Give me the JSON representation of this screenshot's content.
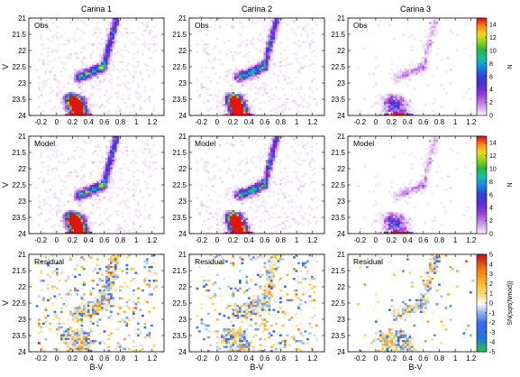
{
  "chart_data": {
    "type": "heatmap",
    "columns": [
      "Carina 1",
      "Carina 2",
      "Carina 3"
    ],
    "rows": [
      {
        "panel_label": "Obs",
        "colorbar": "density"
      },
      {
        "panel_label": "Model",
        "colorbar": "density"
      },
      {
        "panel_label": "Residual",
        "colorbar": "residual"
      }
    ],
    "xlabel": "B-V",
    "ylabel": "V",
    "xlim": [
      -0.35,
      1.35
    ],
    "ylim": [
      24.0,
      21.0
    ],
    "y_inverted": true,
    "xticks": [
      -0.2,
      0,
      0.2,
      0.4,
      0.6,
      0.8,
      1,
      1.2
    ],
    "xtick_labels": [
      "-0.2",
      "0",
      "0.2",
      "0.4",
      "0.6",
      "0.8",
      "1",
      "1.2"
    ],
    "yticks": [
      21,
      21.5,
      22,
      22.5,
      23,
      23.5,
      24
    ],
    "ytick_labels": [
      "21",
      "21.5",
      "22",
      "22.5",
      "23",
      "23.5",
      "24"
    ],
    "colorbar_density": {
      "label": "N",
      "range": [
        0,
        15
      ],
      "ticks": [
        0,
        2,
        4,
        6,
        8,
        10,
        12,
        14
      ],
      "tick_labels": [
        "0",
        "2",
        "4",
        "6",
        "8",
        "10",
        "12",
        "14"
      ]
    },
    "colorbar_residual": {
      "label": "SN(sqrt(Nmod))",
      "range": [
        -5,
        5
      ],
      "ticks": [
        -5,
        -4,
        -3,
        -2,
        -1,
        0,
        1,
        2,
        3,
        4,
        5
      ],
      "tick_labels": [
        "-5",
        "-4",
        "-3",
        "-2",
        "-1",
        "0",
        "1",
        "2",
        "3",
        "4",
        "5"
      ]
    },
    "cmd_features": {
      "main_sequence_turnoff": {
        "bv": 0.22,
        "v": 23.3
      },
      "subgiant_branch": [
        {
          "bv": 0.3,
          "v": 22.7
        },
        {
          "bv": 0.45,
          "v": 22.6
        },
        {
          "bv": 0.58,
          "v": 22.5
        }
      ],
      "red_giant_branch": [
        {
          "bv": 0.6,
          "v": 22.5
        },
        {
          "bv": 0.65,
          "v": 22.0
        },
        {
          "bv": 0.7,
          "v": 21.6
        },
        {
          "bv": 0.75,
          "v": 21.2
        }
      ]
    }
  }
}
